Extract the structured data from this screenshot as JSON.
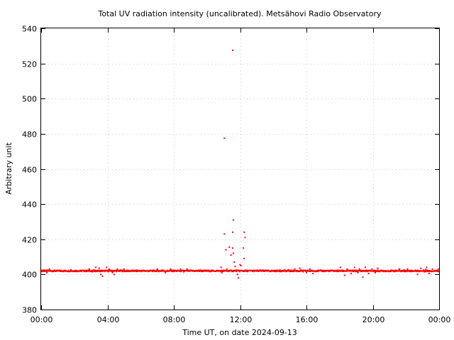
{
  "chart_data": {
    "type": "scatter",
    "title": "Total UV radiation intensity (uncalibrated). Metsähovi Radio Observatory",
    "xlabel": "Time UT, on date 2024-09-13",
    "ylabel": "Arbitrary unit",
    "xlim": [
      0,
      24
    ],
    "ylim": [
      380,
      540
    ],
    "x_ticks": [
      {
        "value": 0,
        "label": "00:00"
      },
      {
        "value": 4,
        "label": "04:00"
      },
      {
        "value": 8,
        "label": "08:00"
      },
      {
        "value": 12,
        "label": "12:00"
      },
      {
        "value": 16,
        "label": "16:00"
      },
      {
        "value": 20,
        "label": "20:00"
      },
      {
        "value": 24,
        "label": "00:00"
      }
    ],
    "y_ticks": [
      380,
      400,
      420,
      440,
      460,
      480,
      500,
      520,
      540
    ],
    "grid": true,
    "marker_color": "#ff0000",
    "baseline_value": 402,
    "series": [
      {
        "color": "#ff0000",
        "points": [
          [
            11.05,
            477.5
          ],
          [
            11.55,
            527.5
          ],
          [
            11.6,
            431.0
          ],
          [
            11.55,
            424.0
          ],
          [
            11.05,
            423.0
          ],
          [
            12.25,
            424.0
          ],
          [
            12.3,
            421.0
          ],
          [
            11.35,
            415.5
          ],
          [
            11.55,
            415.0
          ],
          [
            12.2,
            415.0
          ],
          [
            11.15,
            414.0
          ],
          [
            11.6,
            412.0
          ],
          [
            11.45,
            411.0
          ],
          [
            12.25,
            409.0
          ],
          [
            11.65,
            407.0
          ],
          [
            12.0,
            405.5
          ],
          [
            12.05,
            405.0
          ],
          [
            11.7,
            404.5
          ],
          [
            11.85,
            400.0
          ],
          [
            11.9,
            398.0
          ],
          [
            10.85,
            404.0
          ],
          [
            10.9,
            401.0
          ],
          [
            11.2,
            403.0
          ],
          [
            11.75,
            402.5
          ],
          [
            3.3,
            404.0
          ],
          [
            3.5,
            403.5
          ],
          [
            3.6,
            400.0
          ],
          [
            3.7,
            399.0
          ],
          [
            3.95,
            404.0
          ],
          [
            4.1,
            403.0
          ],
          [
            4.3,
            401.0
          ],
          [
            4.4,
            400.0
          ],
          [
            4.6,
            403.0
          ],
          [
            4.8,
            402.5
          ],
          [
            5.0,
            403.0
          ],
          [
            2.9,
            403.0
          ],
          [
            3.1,
            401.5
          ],
          [
            0.15,
            402.5
          ],
          [
            0.35,
            401.0
          ],
          [
            0.5,
            403.0
          ],
          [
            7.0,
            403.0
          ],
          [
            7.3,
            402.5
          ],
          [
            7.5,
            401.0
          ],
          [
            7.8,
            403.0
          ],
          [
            8.1,
            402.0
          ],
          [
            8.4,
            403.0
          ],
          [
            8.6,
            401.5
          ],
          [
            8.8,
            403.0
          ],
          [
            14.4,
            402.5
          ],
          [
            15.3,
            403.0
          ],
          [
            15.6,
            403.5
          ],
          [
            15.8,
            401.5
          ],
          [
            16.0,
            401.0
          ],
          [
            16.2,
            403.0
          ],
          [
            16.4,
            400.5
          ],
          [
            16.6,
            402.0
          ],
          [
            18.05,
            404.0
          ],
          [
            18.1,
            402.0
          ],
          [
            18.3,
            399.5
          ],
          [
            18.45,
            403.0
          ],
          [
            18.7,
            400.5
          ],
          [
            18.9,
            404.0
          ],
          [
            19.1,
            401.0
          ],
          [
            19.2,
            403.0
          ],
          [
            19.4,
            398.5
          ],
          [
            19.55,
            404.0
          ],
          [
            19.75,
            400.5
          ],
          [
            19.95,
            403.0
          ],
          [
            20.15,
            401.0
          ],
          [
            20.3,
            403.5
          ],
          [
            20.5,
            402.0
          ],
          [
            21.6,
            403.0
          ],
          [
            21.9,
            402.5
          ],
          [
            22.1,
            403.0
          ],
          [
            22.7,
            400.0
          ],
          [
            22.9,
            403.5
          ],
          [
            23.1,
            401.5
          ],
          [
            23.25,
            404.0
          ],
          [
            23.4,
            400.5
          ],
          [
            23.6,
            403.0
          ],
          [
            23.8,
            402.0
          ],
          [
            23.95,
            403.0
          ],
          [
            23.2,
            402.8
          ],
          [
            13.4,
            402.4
          ],
          [
            14.9,
            402.6
          ],
          [
            6.2,
            402.3
          ],
          [
            1.8,
            402.6
          ],
          [
            9.6,
            402.5
          ],
          [
            10.3,
            402.2
          ]
        ]
      }
    ]
  }
}
